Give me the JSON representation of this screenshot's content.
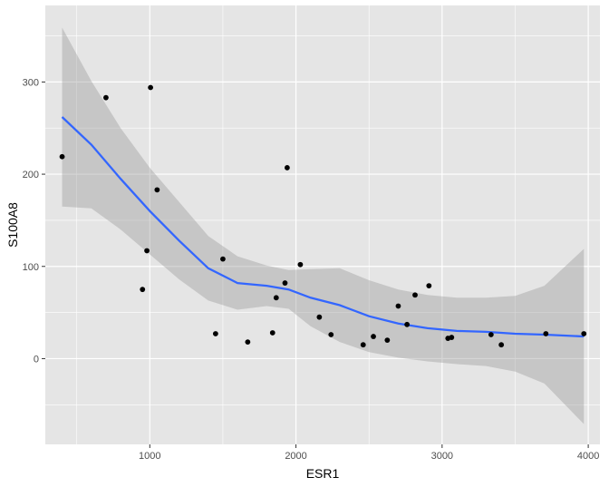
{
  "chart_data": {
    "type": "scatter",
    "title": "",
    "xlabel": "ESR1",
    "ylabel": "S100A8",
    "xlim": [
      285,
      4080
    ],
    "ylim": [
      -93,
      383
    ],
    "x_ticks": [
      1000,
      2000,
      3000,
      4000
    ],
    "x_tick_labels": [
      "1000",
      "2000",
      "3000",
      "4000"
    ],
    "x_minor_ticks": [
      500,
      1500,
      2500,
      3500
    ],
    "y_ticks": [
      0,
      100,
      200,
      300
    ],
    "y_tick_labels": [
      "0",
      "100",
      "200",
      "300"
    ],
    "y_minor_ticks": [
      -50,
      50,
      150,
      250,
      350
    ],
    "grid": true,
    "colors": {
      "panel_background": "#e5e5e5",
      "grid": "#ffffff",
      "points": "#000000",
      "smooth_line": "#3366ff",
      "confidence_band": "#999999"
    },
    "points": [
      {
        "x": 400,
        "y": 219
      },
      {
        "x": 700,
        "y": 283
      },
      {
        "x": 950,
        "y": 75
      },
      {
        "x": 980,
        "y": 117
      },
      {
        "x": 1005,
        "y": 294
      },
      {
        "x": 1050,
        "y": 183
      },
      {
        "x": 1450,
        "y": 27
      },
      {
        "x": 1500,
        "y": 108
      },
      {
        "x": 1670,
        "y": 18
      },
      {
        "x": 1840,
        "y": 28
      },
      {
        "x": 1865,
        "y": 66
      },
      {
        "x": 1925,
        "y": 82
      },
      {
        "x": 1940,
        "y": 207
      },
      {
        "x": 2030,
        "y": 102
      },
      {
        "x": 2160,
        "y": 45
      },
      {
        "x": 2240,
        "y": 26
      },
      {
        "x": 2460,
        "y": 15
      },
      {
        "x": 2530,
        "y": 24
      },
      {
        "x": 2625,
        "y": 20
      },
      {
        "x": 2700,
        "y": 57
      },
      {
        "x": 2760,
        "y": 37
      },
      {
        "x": 2815,
        "y": 69
      },
      {
        "x": 2910,
        "y": 79
      },
      {
        "x": 3040,
        "y": 22
      },
      {
        "x": 3065,
        "y": 23
      },
      {
        "x": 3335,
        "y": 26
      },
      {
        "x": 3405,
        "y": 15
      },
      {
        "x": 3710,
        "y": 27
      },
      {
        "x": 3970,
        "y": 27
      }
    ],
    "smooth": {
      "method": "loess",
      "x": [
        400,
        600,
        800,
        1000,
        1200,
        1400,
        1600,
        1800,
        1950,
        2100,
        2300,
        2500,
        2700,
        2900,
        3100,
        3300,
        3500,
        3700,
        3970
      ],
      "y": [
        262,
        232,
        195,
        160,
        128,
        98,
        82,
        79,
        75,
        66,
        58,
        46,
        38,
        33,
        30,
        29,
        27,
        26,
        24
      ],
      "lower": [
        165,
        163,
        140,
        113,
        86,
        63,
        53,
        57,
        54,
        35,
        18,
        7,
        1,
        -3,
        -6,
        -8,
        -14,
        -27,
        -71
      ],
      "upper": [
        359,
        301,
        250,
        207,
        170,
        133,
        111,
        101,
        96,
        97,
        98,
        85,
        75,
        69,
        66,
        66,
        68,
        79,
        119
      ]
    }
  }
}
